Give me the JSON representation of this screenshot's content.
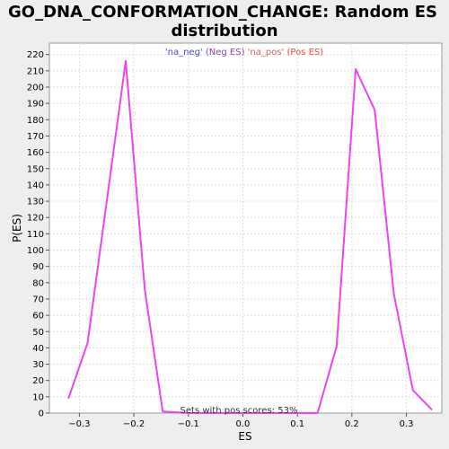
{
  "chart_data": {
    "type": "line",
    "title_lines": [
      "GO_DNA_CONFORMATION_CHANGE: Random ES",
      "distribution"
    ],
    "xlabel": "ES",
    "ylabel": "P(ES)",
    "xlim": [
      -0.355,
      0.365
    ],
    "ylim": [
      0,
      227
    ],
    "x_ticks": [
      -0.3,
      -0.2,
      -0.1,
      0.0,
      0.1,
      0.2,
      0.3
    ],
    "x_tick_labels": [
      "−0.3",
      "−0.2",
      "−0.1",
      "0.0",
      "0.1",
      "0.2",
      "0.3"
    ],
    "y_ticks": [
      0,
      10,
      20,
      30,
      40,
      50,
      60,
      70,
      80,
      90,
      100,
      110,
      120,
      130,
      140,
      150,
      160,
      170,
      180,
      190,
      200,
      210,
      220
    ],
    "grid": true,
    "legend": {
      "placement": "top",
      "entries": [
        {
          "label": "'na_neg'",
          "color": "#4444cc"
        },
        {
          "label": "(Neg ES)",
          "color": "#8844aa"
        },
        {
          "label": "'na_pos'",
          "color": "#cc6666"
        },
        {
          "label": "(Pos ES)",
          "color": "#ee4444"
        }
      ]
    },
    "annotation": "Sets with pos scores: 53%",
    "series": [
      {
        "color": "#ee44ee",
        "x": [
          -0.32,
          -0.285,
          -0.215,
          -0.18,
          -0.147,
          -0.1,
          0.0,
          0.1,
          0.137,
          0.172,
          0.207,
          0.242,
          0.277,
          0.312,
          0.347
        ],
        "y": [
          9,
          43,
          216,
          76,
          1,
          0,
          0,
          0,
          0,
          41,
          211,
          186,
          73,
          14,
          2
        ]
      }
    ]
  }
}
